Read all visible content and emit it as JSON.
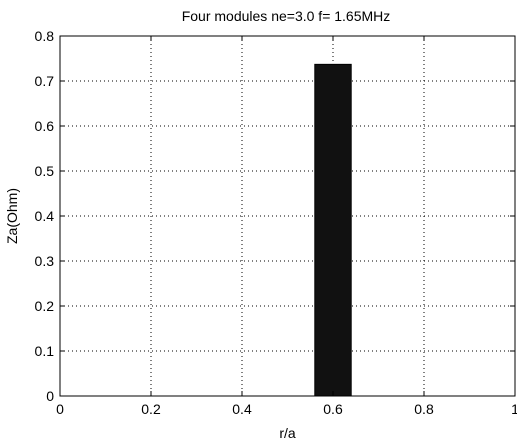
{
  "chart_data": {
    "type": "bar",
    "title": "Four modules ne=3.0   f= 1.65MHz",
    "xlabel": "r/a",
    "ylabel": "Za(Ohm)",
    "xlim": [
      0,
      1
    ],
    "ylim": [
      0,
      0.8
    ],
    "grid": true,
    "x_ticks": [
      "0",
      "0.2",
      "0.4",
      "0.6",
      "0.8",
      "1"
    ],
    "y_ticks": [
      "0",
      "0.1",
      "0.2",
      "0.3",
      "0.4",
      "0.5",
      "0.6",
      "0.7",
      "0.8"
    ],
    "bar_width": 0.08,
    "x": [
      0.6
    ],
    "values": [
      0.737
    ],
    "bar_color": "#111111"
  }
}
